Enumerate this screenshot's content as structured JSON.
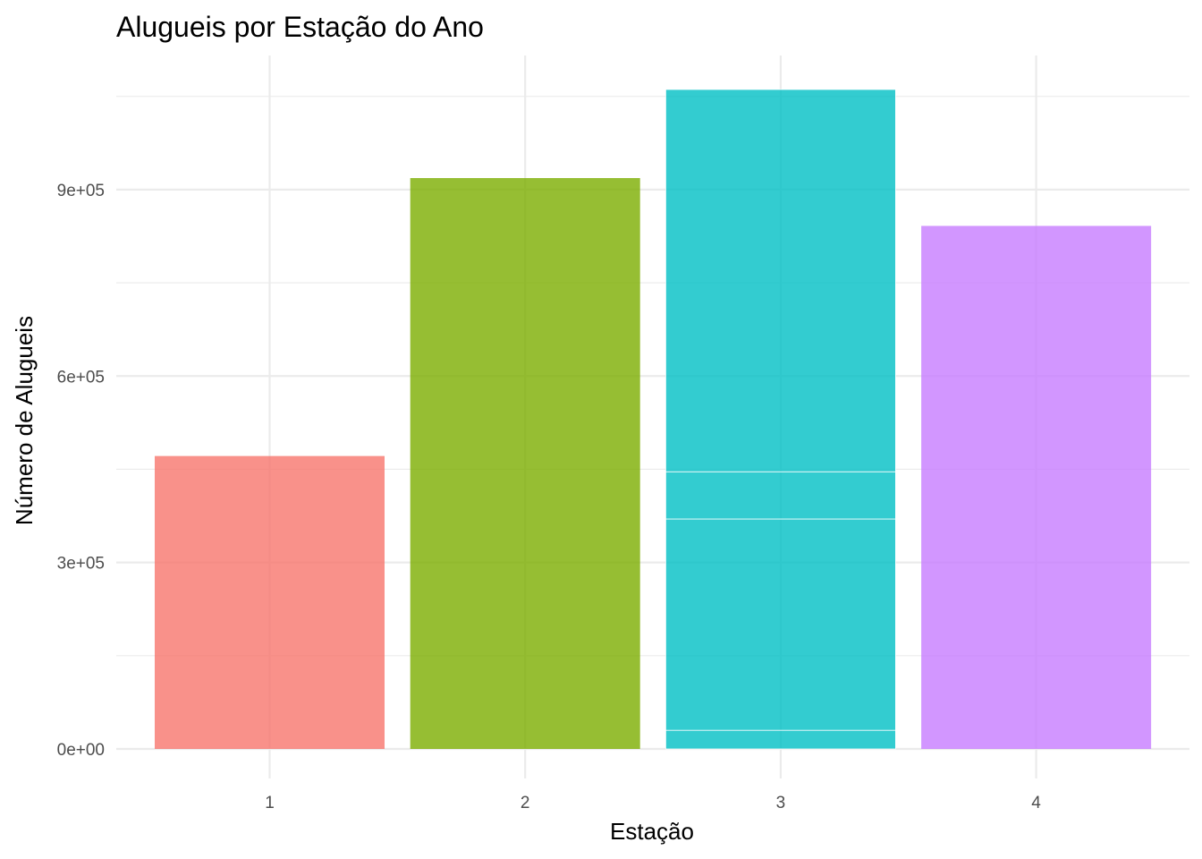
{
  "chart_data": {
    "type": "bar",
    "title": "Alugueis por Estação do Ano",
    "xlabel": "Estação",
    "ylabel": "Número de Alugueis",
    "categories": [
      "1",
      "2",
      "3",
      "4"
    ],
    "values": [
      471348,
      918589,
      1061129,
      841613
    ],
    "stacked_segments": {
      "3": [
        30000,
        340000,
        76000,
        615129
      ]
    },
    "colors": [
      "#F8766D",
      "#7CAE00",
      "#00BFC4",
      "#C77CFF"
    ],
    "bar_opacity": 0.8,
    "ylim": [
      0,
      1061129
    ],
    "y_ticks": [
      {
        "value": 0,
        "label": "0e+00"
      },
      {
        "value": 300000,
        "label": "3e+05"
      },
      {
        "value": 600000,
        "label": "6e+05"
      },
      {
        "value": 900000,
        "label": "9e+05"
      }
    ],
    "grid": true,
    "legend": "none"
  }
}
